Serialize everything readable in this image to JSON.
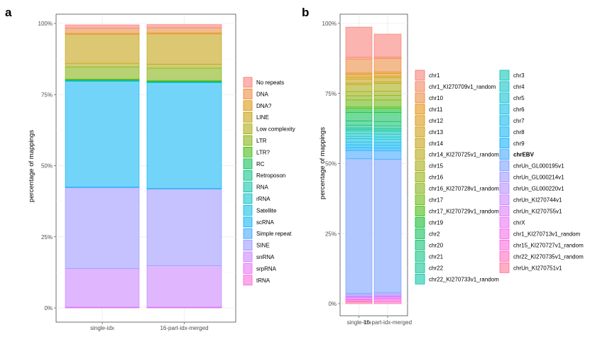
{
  "chart_data": [
    {
      "panel": "a",
      "type": "bar",
      "stacked": true,
      "ylabel": "percentage of mappings",
      "xlabel": "",
      "ylim": [
        0,
        100
      ],
      "yticks": [
        0,
        25,
        50,
        75,
        100
      ],
      "ytick_labels": [
        "0%",
        "25%",
        "50%",
        "75%",
        "100%"
      ],
      "grid": true,
      "legend_position": "right",
      "categories": [
        "single-idx",
        "16-part-idx-merged"
      ],
      "series": [
        {
          "name": "No repeats",
          "color": "#F8766D",
          "values": [
            1.2,
            1.1
          ]
        },
        {
          "name": "DNA",
          "color": "#EA8331",
          "values": [
            1.8,
            1.8
          ]
        },
        {
          "name": "DNA?",
          "color": "#D89000",
          "values": [
            0.3,
            0.4
          ]
        },
        {
          "name": "LINE",
          "color": "#C09B00",
          "values": [
            10.2,
            10.6
          ]
        },
        {
          "name": "Low complexity",
          "color": "#A3A500",
          "values": [
            1.3,
            1.4
          ]
        },
        {
          "name": "LTR",
          "color": "#7CAE00",
          "values": [
            4.2,
            4.3
          ]
        },
        {
          "name": "LTR?",
          "color": "#39B600",
          "values": [
            0.3,
            0.3
          ]
        },
        {
          "name": "RC",
          "color": "#00BB4E",
          "values": [
            0.1,
            0.1
          ]
        },
        {
          "name": "Retroposon",
          "color": "#00BF7D",
          "values": [
            0.2,
            0.2
          ]
        },
        {
          "name": "RNA",
          "color": "#00C1A3",
          "values": [
            0.05,
            0.05
          ]
        },
        {
          "name": "rRNA",
          "color": "#00BFC4",
          "values": [
            0.1,
            0.1
          ]
        },
        {
          "name": "Satellite",
          "color": "#00BAE0",
          "values": [
            0.05,
            0.05
          ]
        },
        {
          "name": "scRNA",
          "color": "#00B0F6",
          "values": [
            37.2,
            37.2
          ]
        },
        {
          "name": "Simple repeat",
          "color": "#35A2FF",
          "values": [
            0.2,
            0.2
          ]
        },
        {
          "name": "SINE",
          "color": "#9590FF",
          "values": [
            28.5,
            27.0
          ]
        },
        {
          "name": "snRNA",
          "color": "#C77CFF",
          "values": [
            13.5,
            14.5
          ]
        },
        {
          "name": "srpRNA",
          "color": "#E76BF3",
          "values": [
            0.2,
            0.2
          ]
        },
        {
          "name": "tRNA",
          "color": "#FA62DB",
          "values": [
            0.1,
            0.1
          ]
        }
      ]
    },
    {
      "panel": "b",
      "type": "bar",
      "stacked": true,
      "ylabel": "percentage of mappings",
      "xlabel": "",
      "ylim": [
        0,
        100
      ],
      "yticks": [
        0,
        25,
        50,
        75,
        100
      ],
      "ytick_labels": [
        "0%",
        "25%",
        "50%",
        "75%",
        "100%"
      ],
      "grid": true,
      "legend_position": "right",
      "categories": [
        "single-idx",
        "16-part-idx-merged"
      ],
      "series": [
        {
          "name": "chr1",
          "color": "#F8766D",
          "values": [
            10.8,
            8.2
          ]
        },
        {
          "name": "chr1_KI270709v1_random",
          "color": "#F27D53",
          "values": [
            0.6,
            0.5
          ]
        },
        {
          "name": "chr10",
          "color": "#EA8331",
          "values": [
            5.0,
            4.8
          ]
        },
        {
          "name": "chr11",
          "color": "#E18A00",
          "values": [
            0.5,
            0.5
          ]
        },
        {
          "name": "chr12",
          "color": "#D89000",
          "values": [
            1.0,
            1.0
          ]
        },
        {
          "name": "chr13",
          "color": "#CD9600",
          "values": [
            0.6,
            0.6
          ]
        },
        {
          "name": "chr14",
          "color": "#C09B00",
          "values": [
            1.5,
            1.5
          ]
        },
        {
          "name": "chr14_KI270725v1_random",
          "color": "#B2A000",
          "values": [
            0.5,
            0.5
          ]
        },
        {
          "name": "chr15",
          "color": "#A3A500",
          "values": [
            2.5,
            2.8
          ]
        },
        {
          "name": "chr16",
          "color": "#91AA00",
          "values": [
            1.5,
            1.5
          ]
        },
        {
          "name": "chr16_KI270728v1_random",
          "color": "#7CAE00",
          "values": [
            1.5,
            1.6
          ]
        },
        {
          "name": "chr17",
          "color": "#60B200",
          "values": [
            2.5,
            2.5
          ]
        },
        {
          "name": "chr17_KI270729v1_random",
          "color": "#39B600",
          "values": [
            0.5,
            0.5
          ]
        },
        {
          "name": "chr19",
          "color": "#00B81F",
          "values": [
            1.5,
            1.5
          ]
        },
        {
          "name": "chr2",
          "color": "#00BB4E",
          "values": [
            3.0,
            3.2
          ]
        },
        {
          "name": "chr20",
          "color": "#00BD69",
          "values": [
            1.5,
            1.5
          ]
        },
        {
          "name": "chr21",
          "color": "#00BF7D",
          "values": [
            1.0,
            1.0
          ]
        },
        {
          "name": "chr22",
          "color": "#00C08F",
          "values": [
            0.5,
            0.5
          ]
        },
        {
          "name": "chr22_KI270733v1_random",
          "color": "#00C1A3",
          "values": [
            0.5,
            0.5
          ]
        },
        {
          "name": "chr3",
          "color": "#00C1B3",
          "values": [
            1.0,
            1.0
          ]
        },
        {
          "name": "chr4",
          "color": "#00BFC4",
          "values": [
            1.0,
            1.0
          ]
        },
        {
          "name": "chr5",
          "color": "#00BDD2",
          "values": [
            0.8,
            0.8
          ]
        },
        {
          "name": "chr6",
          "color": "#00BAE0",
          "values": [
            1.2,
            1.2
          ]
        },
        {
          "name": "chr7",
          "color": "#00B5EC",
          "values": [
            1.0,
            1.0
          ]
        },
        {
          "name": "chr8",
          "color": "#00B0F6",
          "values": [
            1.0,
            1.0
          ]
        },
        {
          "name": "chr9",
          "color": "#00A9FF",
          "values": [
            1.0,
            1.0
          ]
        },
        {
          "name": "chrEBV",
          "color": "#35A2FF",
          "values": [
            3.0,
            3.0
          ]
        },
        {
          "name": "chrUn_GL000195v1",
          "color": "#7099FF",
          "values": [
            48.0,
            47.5
          ]
        },
        {
          "name": "chrUn_GL000214v1",
          "color": "#9590FF",
          "values": [
            0.5,
            0.5
          ]
        },
        {
          "name": "chrUn_GL000220v1",
          "color": "#B086FF",
          "values": [
            0.5,
            0.5
          ]
        },
        {
          "name": "chrUn_KI270744v1",
          "color": "#C77CFF",
          "values": [
            0.3,
            0.3
          ]
        },
        {
          "name": "chrUn_KI270755v1",
          "color": "#D973FC",
          "values": [
            0.3,
            0.3
          ]
        },
        {
          "name": "chrX",
          "color": "#E76BF3",
          "values": [
            0.4,
            0.4
          ]
        },
        {
          "name": "chr1_KI270713v1_random",
          "color": "#F265E8",
          "values": [
            0.3,
            0.3
          ]
        },
        {
          "name": "chr15_KI270727v1_random",
          "color": "#FA62DB",
          "values": [
            0.4,
            0.8
          ]
        },
        {
          "name": "chr22_KI270735v1_random",
          "color": "#FF62BC",
          "values": [
            0.4,
            0.9
          ]
        },
        {
          "name": "chrUn_KI270751v1",
          "color": "#FF6C91",
          "values": [
            0.6,
            0.0
          ]
        }
      ]
    }
  ]
}
